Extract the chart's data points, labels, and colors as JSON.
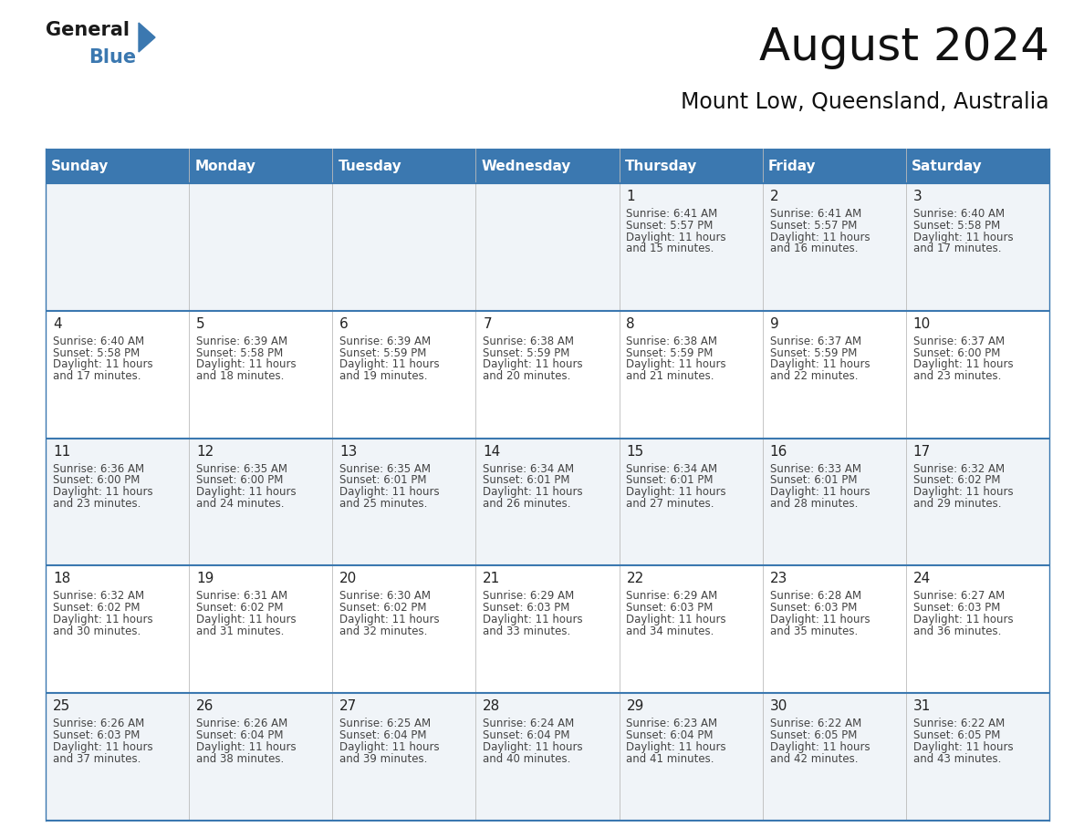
{
  "title": "August 2024",
  "subtitle": "Mount Low, Queensland, Australia",
  "header_bg_color": "#3b78b0",
  "header_text_color": "#ffffff",
  "day_names": [
    "Sunday",
    "Monday",
    "Tuesday",
    "Wednesday",
    "Thursday",
    "Friday",
    "Saturday"
  ],
  "row_colors": [
    "#f0f4f8",
    "#ffffff",
    "#f0f4f8",
    "#ffffff",
    "#f0f4f8"
  ],
  "border_color": "#3b78b0",
  "text_color": "#444444",
  "number_color": "#222222",
  "cal_data": [
    [
      {
        "day": "",
        "sunrise": "",
        "sunset": "",
        "daylight": ""
      },
      {
        "day": "",
        "sunrise": "",
        "sunset": "",
        "daylight": ""
      },
      {
        "day": "",
        "sunrise": "",
        "sunset": "",
        "daylight": ""
      },
      {
        "day": "",
        "sunrise": "",
        "sunset": "",
        "daylight": ""
      },
      {
        "day": "1",
        "sunrise": "6:41 AM",
        "sunset": "5:57 PM",
        "daylight": "11 hours and 15 minutes."
      },
      {
        "day": "2",
        "sunrise": "6:41 AM",
        "sunset": "5:57 PM",
        "daylight": "11 hours and 16 minutes."
      },
      {
        "day": "3",
        "sunrise": "6:40 AM",
        "sunset": "5:58 PM",
        "daylight": "11 hours and 17 minutes."
      }
    ],
    [
      {
        "day": "4",
        "sunrise": "6:40 AM",
        "sunset": "5:58 PM",
        "daylight": "11 hours and 17 minutes."
      },
      {
        "day": "5",
        "sunrise": "6:39 AM",
        "sunset": "5:58 PM",
        "daylight": "11 hours and 18 minutes."
      },
      {
        "day": "6",
        "sunrise": "6:39 AM",
        "sunset": "5:59 PM",
        "daylight": "11 hours and 19 minutes."
      },
      {
        "day": "7",
        "sunrise": "6:38 AM",
        "sunset": "5:59 PM",
        "daylight": "11 hours and 20 minutes."
      },
      {
        "day": "8",
        "sunrise": "6:38 AM",
        "sunset": "5:59 PM",
        "daylight": "11 hours and 21 minutes."
      },
      {
        "day": "9",
        "sunrise": "6:37 AM",
        "sunset": "5:59 PM",
        "daylight": "11 hours and 22 minutes."
      },
      {
        "day": "10",
        "sunrise": "6:37 AM",
        "sunset": "6:00 PM",
        "daylight": "11 hours and 23 minutes."
      }
    ],
    [
      {
        "day": "11",
        "sunrise": "6:36 AM",
        "sunset": "6:00 PM",
        "daylight": "11 hours and 23 minutes."
      },
      {
        "day": "12",
        "sunrise": "6:35 AM",
        "sunset": "6:00 PM",
        "daylight": "11 hours and 24 minutes."
      },
      {
        "day": "13",
        "sunrise": "6:35 AM",
        "sunset": "6:01 PM",
        "daylight": "11 hours and 25 minutes."
      },
      {
        "day": "14",
        "sunrise": "6:34 AM",
        "sunset": "6:01 PM",
        "daylight": "11 hours and 26 minutes."
      },
      {
        "day": "15",
        "sunrise": "6:34 AM",
        "sunset": "6:01 PM",
        "daylight": "11 hours and 27 minutes."
      },
      {
        "day": "16",
        "sunrise": "6:33 AM",
        "sunset": "6:01 PM",
        "daylight": "11 hours and 28 minutes."
      },
      {
        "day": "17",
        "sunrise": "6:32 AM",
        "sunset": "6:02 PM",
        "daylight": "11 hours and 29 minutes."
      }
    ],
    [
      {
        "day": "18",
        "sunrise": "6:32 AM",
        "sunset": "6:02 PM",
        "daylight": "11 hours and 30 minutes."
      },
      {
        "day": "19",
        "sunrise": "6:31 AM",
        "sunset": "6:02 PM",
        "daylight": "11 hours and 31 minutes."
      },
      {
        "day": "20",
        "sunrise": "6:30 AM",
        "sunset": "6:02 PM",
        "daylight": "11 hours and 32 minutes."
      },
      {
        "day": "21",
        "sunrise": "6:29 AM",
        "sunset": "6:03 PM",
        "daylight": "11 hours and 33 minutes."
      },
      {
        "day": "22",
        "sunrise": "6:29 AM",
        "sunset": "6:03 PM",
        "daylight": "11 hours and 34 minutes."
      },
      {
        "day": "23",
        "sunrise": "6:28 AM",
        "sunset": "6:03 PM",
        "daylight": "11 hours and 35 minutes."
      },
      {
        "day": "24",
        "sunrise": "6:27 AM",
        "sunset": "6:03 PM",
        "daylight": "11 hours and 36 minutes."
      }
    ],
    [
      {
        "day": "25",
        "sunrise": "6:26 AM",
        "sunset": "6:03 PM",
        "daylight": "11 hours and 37 minutes."
      },
      {
        "day": "26",
        "sunrise": "6:26 AM",
        "sunset": "6:04 PM",
        "daylight": "11 hours and 38 minutes."
      },
      {
        "day": "27",
        "sunrise": "6:25 AM",
        "sunset": "6:04 PM",
        "daylight": "11 hours and 39 minutes."
      },
      {
        "day": "28",
        "sunrise": "6:24 AM",
        "sunset": "6:04 PM",
        "daylight": "11 hours and 40 minutes."
      },
      {
        "day": "29",
        "sunrise": "6:23 AM",
        "sunset": "6:04 PM",
        "daylight": "11 hours and 41 minutes."
      },
      {
        "day": "30",
        "sunrise": "6:22 AM",
        "sunset": "6:05 PM",
        "daylight": "11 hours and 42 minutes."
      },
      {
        "day": "31",
        "sunrise": "6:22 AM",
        "sunset": "6:05 PM",
        "daylight": "11 hours and 43 minutes."
      }
    ]
  ],
  "logo_color_general": "#1a1a1a",
  "logo_color_blue": "#3b78b0",
  "logo_triangle_color": "#3b78b0",
  "title_fontsize": 36,
  "subtitle_fontsize": 17,
  "header_fontsize": 11,
  "day_num_fontsize": 11,
  "cell_text_fontsize": 8.5
}
